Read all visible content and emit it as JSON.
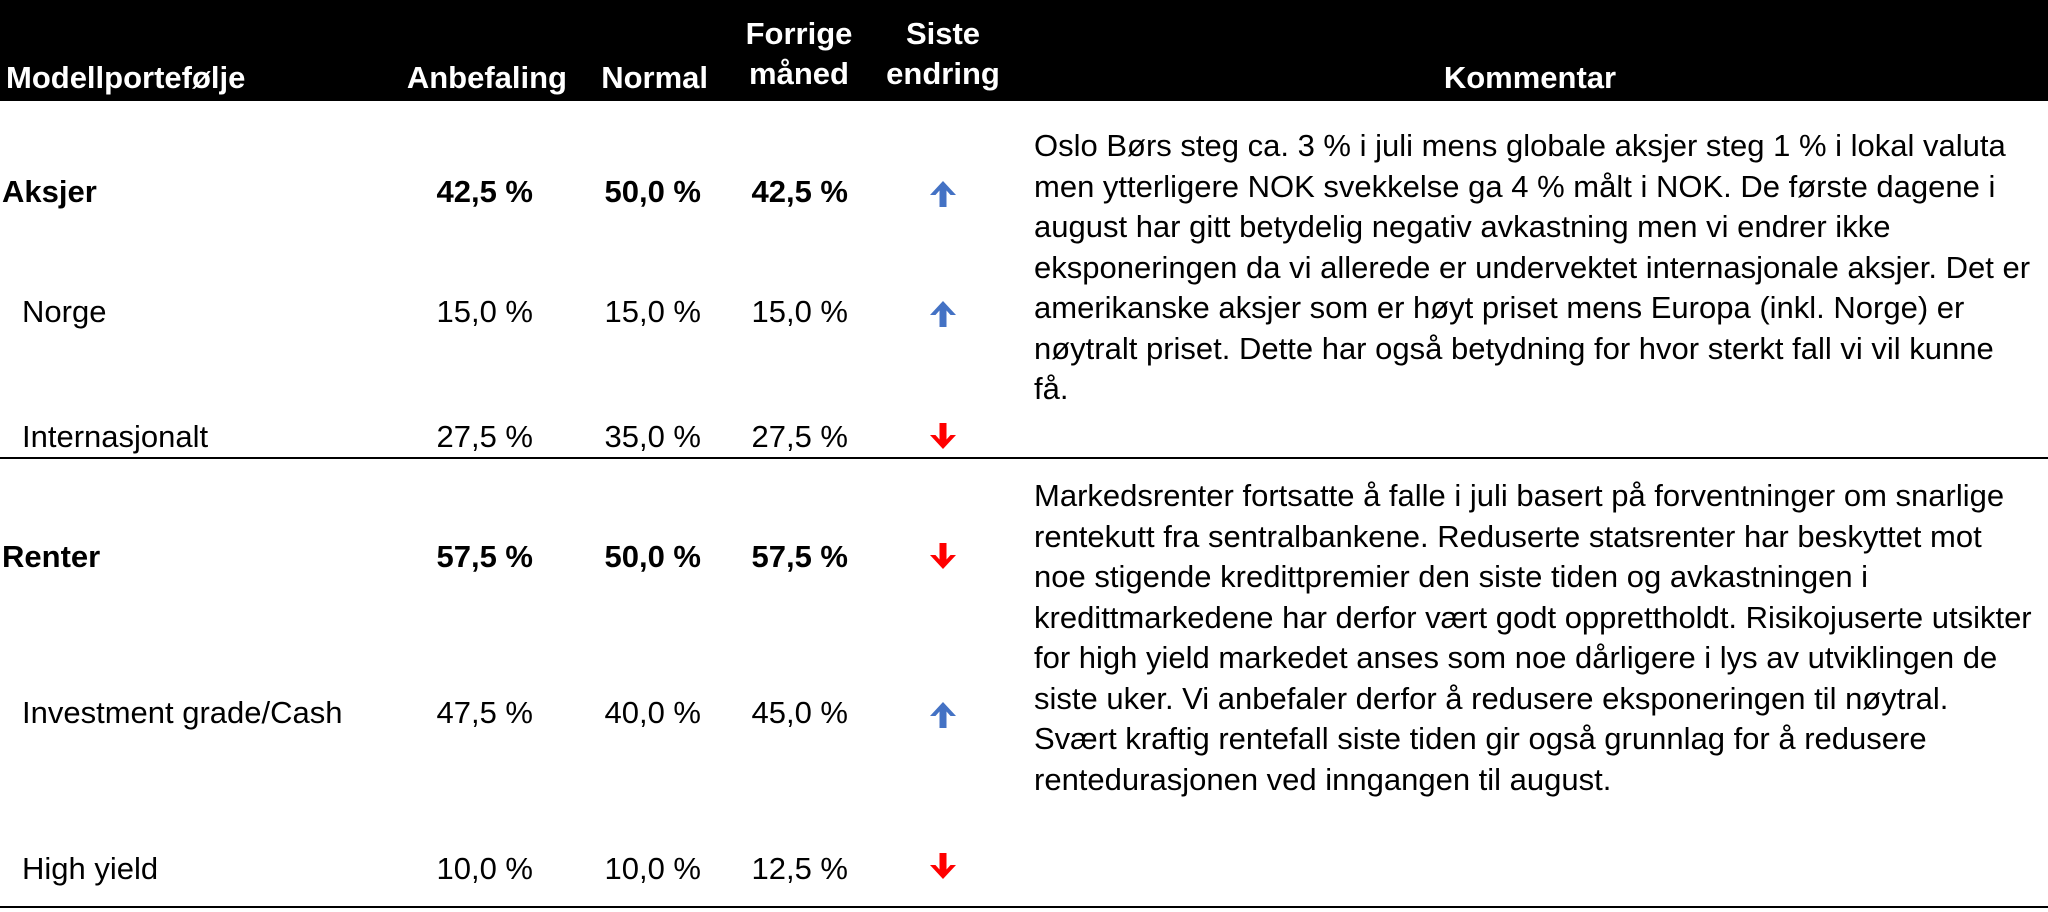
{
  "header": {
    "portfolio": "Modellportefølje",
    "recommendation": "Anbefaling",
    "normal": "Normal",
    "previous_month_line1": "Forrige",
    "previous_month_line2": "måned",
    "last_change_line1": "Siste",
    "last_change_line2": "endring",
    "comment": "Kommentar"
  },
  "rows": [
    {
      "name": "Aksjer",
      "recommendation": "42,5 %",
      "normal": "50,0 %",
      "previous": "42,5 %",
      "change": "up"
    },
    {
      "name": "Norge",
      "recommendation": "15,0 %",
      "normal": "15,0 %",
      "previous": "15,0 %",
      "change": "up"
    },
    {
      "name": "Internasjonalt",
      "recommendation": "27,5 %",
      "normal": "35,0 %",
      "previous": "27,5 %",
      "change": "down"
    },
    {
      "name": "Renter",
      "recommendation": "57,5 %",
      "normal": "50,0 %",
      "previous": "57,5 %",
      "change": "down"
    },
    {
      "name": "Investment grade/Cash",
      "recommendation": "47,5 %",
      "normal": "40,0 %",
      "previous": "45,0 %",
      "change": "up"
    },
    {
      "name": "High yield",
      "recommendation": "10,0 %",
      "normal": "10,0 %",
      "previous": "12,5 %",
      "change": "down"
    }
  ],
  "comments": {
    "equities": "Oslo Børs steg ca. 3 % i juli mens globale aksjer steg 1 % i lokal valuta men ytterligere NOK svekkelse ga 4 % målt i NOK. De første dagene i august har gitt betydelig negativ avkastning men vi endrer ikke eksponeringen da vi allerede er undervektet internasjonale aksjer. Det er amerikanske aksjer som er høyt priset mens Europa (inkl. Norge) er nøytralt priset. Dette har også betydning for hvor sterkt fall vi vil kunne få.",
    "fixed_income": "Markedsrenter fortsatte å falle i juli basert på forventninger om snarlige rentekutt fra sentralbankene. Reduserte statsrenter har beskyttet mot noe stigende kredittpremier den siste tiden og avkastningen i kredittmarkedene har derfor vært godt opprettholdt. Risikojuserte utsikter for high yield markedet anses som noe dårligere i lys av utviklingen de siste uker. Vi anbefaler derfor å redusere eksponeringen til nøytral. Svært kraftig rentefall siste tiden gir også grunnlag for å redusere rentedurasjonen ved inngangen til august."
  },
  "colors": {
    "header_bg": "#000000",
    "header_text": "#ffffff",
    "arrow_up": "#4472c4",
    "arrow_down": "#ff0000"
  }
}
